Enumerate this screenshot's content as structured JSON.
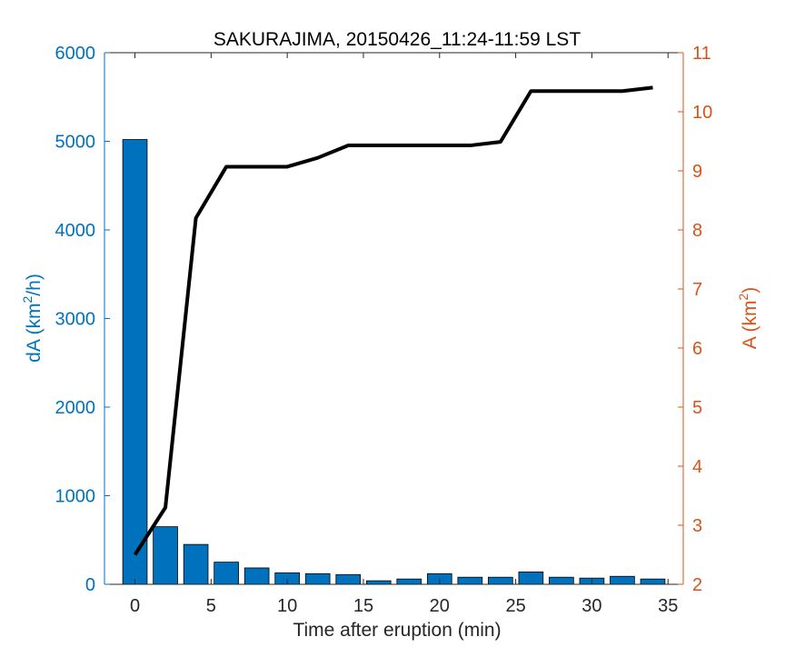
{
  "chart_data": {
    "type": "bar+line",
    "title": "SAKURAJIMA, 20150426_11:24-11:59 LST",
    "xlabel": "Time after eruption (min)",
    "ylabel_left": {
      "prefix": "dA (km",
      "sup": "2",
      "suffix": "/h)"
    },
    "ylabel_right": {
      "prefix": "A (km",
      "sup": "2",
      "suffix": ")"
    },
    "xlim": [
      -2,
      36
    ],
    "ylim_left": [
      0,
      6000
    ],
    "ylim_right": [
      2,
      11
    ],
    "xticks": [
      0,
      5,
      10,
      15,
      20,
      25,
      30,
      35
    ],
    "yticks_left": [
      0,
      1000,
      2000,
      3000,
      4000,
      5000,
      6000
    ],
    "yticks_right": [
      2,
      3,
      4,
      5,
      6,
      7,
      8,
      9,
      10,
      11
    ],
    "grid": false,
    "legend": "none",
    "bar_series": {
      "axis": "left",
      "color": "#0072bd",
      "bar_width": 1.6,
      "x": [
        0,
        2,
        4,
        6,
        8,
        10,
        12,
        14,
        16,
        18,
        20,
        22,
        24,
        26,
        28,
        30,
        32,
        34
      ],
      "values": [
        5020,
        650,
        450,
        250,
        185,
        130,
        120,
        110,
        40,
        60,
        120,
        80,
        80,
        140,
        80,
        70,
        90,
        60
      ]
    },
    "line_series": {
      "axis": "right",
      "color": "#000000",
      "x": [
        0,
        2,
        4,
        6,
        8,
        10,
        12,
        14,
        16,
        18,
        20,
        22,
        24,
        26,
        28,
        30,
        32,
        34
      ],
      "values": [
        2.5,
        3.3,
        8.2,
        9.07,
        9.07,
        9.07,
        9.22,
        9.43,
        9.43,
        9.43,
        9.43,
        9.43,
        9.49,
        10.35,
        10.35,
        10.35,
        10.35,
        10.41
      ]
    },
    "colors": {
      "left_axis": "#0072bd",
      "right_axis": "#d95319",
      "bottom_axis": "#262626"
    }
  }
}
